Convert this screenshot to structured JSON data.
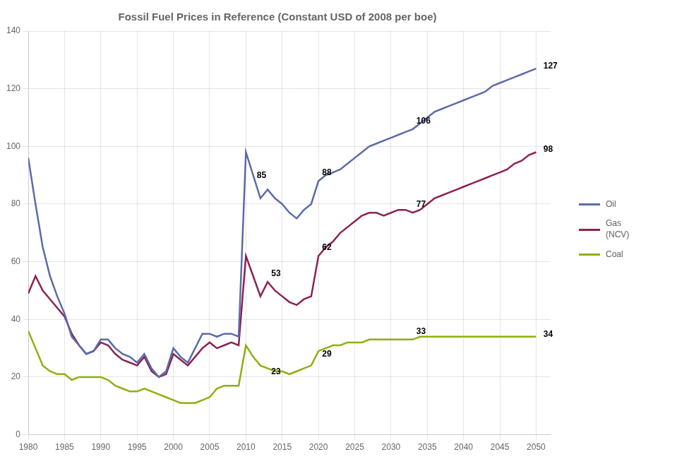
{
  "chart_data": {
    "type": "line",
    "title": "Fossil Fuel Prices in Reference (Constant USD of 2008 per boe)",
    "x": [
      1980,
      1981,
      1982,
      1983,
      1984,
      1985,
      1986,
      1987,
      1988,
      1989,
      1990,
      1991,
      1992,
      1993,
      1994,
      1995,
      1996,
      1997,
      1998,
      1999,
      2000,
      2001,
      2002,
      2003,
      2004,
      2005,
      2006,
      2007,
      2008,
      2009,
      2010,
      2011,
      2012,
      2013,
      2014,
      2015,
      2016,
      2017,
      2018,
      2019,
      2020,
      2021,
      2022,
      2023,
      2024,
      2025,
      2026,
      2027,
      2028,
      2029,
      2030,
      2031,
      2032,
      2033,
      2034,
      2035,
      2036,
      2037,
      2038,
      2039,
      2040,
      2041,
      2042,
      2043,
      2044,
      2045,
      2046,
      2047,
      2048,
      2049,
      2050
    ],
    "series": [
      {
        "name": "Oil",
        "color": "#5a6ba8",
        "values": [
          96,
          80,
          65,
          55,
          48,
          42,
          34,
          31,
          28,
          29,
          33,
          33,
          30,
          28,
          27,
          25,
          28,
          23,
          20,
          22,
          30,
          27,
          25,
          30,
          35,
          35,
          34,
          35,
          35,
          34,
          98,
          90,
          82,
          85,
          82,
          80,
          77,
          75,
          78,
          80,
          88,
          90,
          91,
          92,
          94,
          96,
          98,
          100,
          101,
          102,
          103,
          104,
          105,
          106,
          108,
          110,
          112,
          113,
          114,
          115,
          116,
          117,
          118,
          119,
          121,
          122,
          123,
          124,
          125,
          126,
          127
        ]
      },
      {
        "name": "Gas\n(NCV)",
        "color": "#8b2252",
        "values": [
          49,
          55,
          50,
          47,
          44,
          41,
          35,
          31,
          28,
          29,
          32,
          31,
          28,
          26,
          25,
          24,
          27,
          22,
          20,
          21,
          28,
          26,
          24,
          27,
          30,
          32,
          30,
          31,
          32,
          31,
          62,
          55,
          48,
          53,
          50,
          48,
          46,
          45,
          47,
          48,
          62,
          65,
          67,
          70,
          72,
          74,
          76,
          77,
          77,
          76,
          77,
          78,
          78,
          77,
          78,
          80,
          82,
          83,
          84,
          85,
          86,
          87,
          88,
          89,
          90,
          91,
          92,
          94,
          95,
          97,
          98
        ]
      },
      {
        "name": "Coal",
        "color": "#8db010",
        "values": [
          36,
          30,
          24,
          22,
          21,
          21,
          19,
          20,
          20,
          20,
          20,
          19,
          17,
          16,
          15,
          15,
          16,
          15,
          14,
          13,
          12,
          11,
          11,
          11,
          12,
          13,
          16,
          17,
          17,
          17,
          31,
          27,
          24,
          23,
          22,
          22,
          21,
          22,
          23,
          24,
          29,
          30,
          31,
          31,
          32,
          32,
          32,
          33,
          33,
          33,
          33,
          33,
          33,
          33,
          34,
          34,
          34,
          34,
          34,
          34,
          34,
          34,
          34,
          34,
          34,
          34,
          34,
          34,
          34,
          34,
          34
        ]
      }
    ],
    "xlim": [
      1980,
      2052
    ],
    "ylim": [
      0,
      140
    ],
    "xticks": [
      1980,
      1985,
      1990,
      1995,
      2000,
      2005,
      2010,
      2015,
      2020,
      2025,
      2030,
      2035,
      2040,
      2045,
      2050
    ],
    "yticks": [
      0,
      20,
      40,
      60,
      80,
      100,
      120,
      140
    ],
    "grid": true,
    "legend": "right",
    "annotations": [
      {
        "text": "85",
        "x": 2011.5,
        "y": 89
      },
      {
        "text": "88",
        "x": 2020.5,
        "y": 90
      },
      {
        "text": "106",
        "x": 2033.5,
        "y": 108
      },
      {
        "text": "127",
        "x": 2051,
        "y": 127
      },
      {
        "text": "53",
        "x": 2013.5,
        "y": 55
      },
      {
        "text": "62",
        "x": 2020.5,
        "y": 64
      },
      {
        "text": "77",
        "x": 2033.5,
        "y": 79
      },
      {
        "text": "98",
        "x": 2051,
        "y": 98
      },
      {
        "text": "23",
        "x": 2013.5,
        "y": 21
      },
      {
        "text": "29",
        "x": 2020.5,
        "y": 27
      },
      {
        "text": "33",
        "x": 2033.5,
        "y": 35
      },
      {
        "text": "34",
        "x": 2051,
        "y": 34
      }
    ]
  }
}
